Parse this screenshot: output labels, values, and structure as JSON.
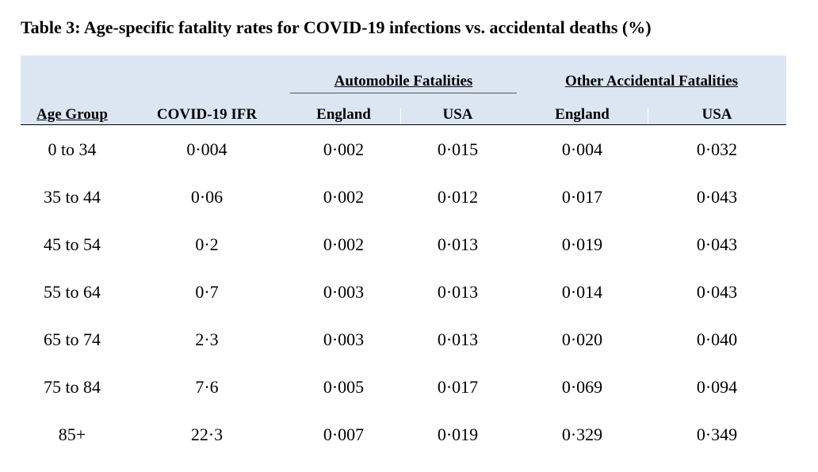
{
  "table": {
    "title": "Table 3: Age-specific fatality rates for COVID-19 infections vs. accidental deaths (%)",
    "group_headers": {
      "automobile": "Automobile Fatalities",
      "other": "Other Accidental Fatalities"
    },
    "column_headers": [
      "Age Group",
      "COVID-19 IFR",
      "England",
      "USA",
      "England",
      "USA"
    ],
    "rows": [
      [
        "0 to 34",
        "0·004",
        "0·002",
        "0·015",
        "0·004",
        "0·032"
      ],
      [
        "35 to 44",
        "0·06",
        "0·002",
        "0·012",
        "0·017",
        "0·043"
      ],
      [
        "45 to 54",
        "0·2",
        "0·002",
        "0·013",
        "0·019",
        "0·043"
      ],
      [
        "55 to 64",
        "0·7",
        "0·003",
        "0·013",
        "0·014",
        "0·043"
      ],
      [
        "65 to 74",
        "2·3",
        "0·003",
        "0·013",
        "0·020",
        "0·040"
      ],
      [
        "75 to 84",
        "7·6",
        "0·005",
        "0·017",
        "0·069",
        "0·094"
      ],
      [
        "85+",
        "22·3",
        "0·007",
        "0·019",
        "0·329",
        "0·349"
      ]
    ]
  },
  "colors": {
    "header_background": "#dce6f2",
    "text": "#000000"
  }
}
